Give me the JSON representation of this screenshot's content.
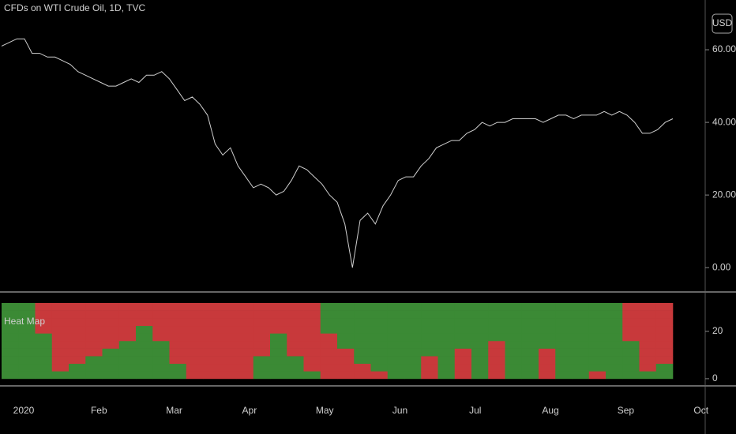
{
  "chart_data": [
    {
      "type": "line",
      "title": "CFDs on WTI Crude Oil, 1D, TVC",
      "currency": "USD",
      "color": "#cfcfcf",
      "values": [
        61,
        62,
        63,
        63,
        59,
        59,
        58,
        58,
        57,
        56,
        54,
        53,
        52,
        51,
        50,
        50,
        51,
        52,
        51,
        53,
        53,
        54,
        52,
        49,
        46,
        47,
        45,
        42,
        34,
        31,
        33,
        28,
        25,
        22,
        23,
        22,
        20,
        21,
        24,
        28,
        27,
        25,
        23,
        20,
        18,
        12,
        0,
        13,
        15,
        12,
        17,
        20,
        24,
        25,
        25,
        28,
        30,
        33,
        34,
        35,
        35,
        37,
        38,
        40,
        39,
        40,
        40,
        41,
        41,
        41,
        41,
        40,
        41,
        42,
        42,
        41,
        42,
        42,
        42,
        43,
        42,
        43,
        42,
        40,
        37,
        37,
        38,
        40,
        41
      ],
      "ylim": [
        -6.7,
        73.7
      ],
      "yticks": [
        {
          "value": 0,
          "label": "0.00"
        },
        {
          "value": 20,
          "label": "20.00"
        },
        {
          "value": 40,
          "label": "40.00"
        },
        {
          "value": 60,
          "label": "60.00"
        }
      ]
    },
    {
      "type": "heatmap",
      "title": "Heat Map",
      "colors": {
        "-1": "#c8393b",
        "1": "#3b8a35"
      },
      "ylim": [
        -2.7,
        36
      ],
      "yticks": [
        0,
        20
      ],
      "yedges": [
        0,
        3.2,
        6.4,
        9.6,
        12.8,
        16,
        19.2,
        22.4,
        25.6,
        28.8,
        32
      ],
      "xtick_labels": [
        "2020",
        "Feb",
        "Mar",
        "Apr",
        "May",
        "Jun",
        "Jul",
        "Aug",
        "Sep",
        "Oct"
      ],
      "z": [
        [
          1,
          1,
          1,
          1,
          1,
          1,
          1,
          1,
          1,
          1,
          1,
          -1,
          -1,
          -1,
          -1,
          1,
          1,
          1,
          1,
          -1,
          -1,
          -1,
          -1,
          1,
          1,
          -1,
          1,
          -1,
          1,
          -1,
          1,
          1,
          -1,
          1,
          1,
          -1,
          1,
          1,
          1,
          1
        ],
        [
          1,
          1,
          1,
          -1,
          1,
          1,
          1,
          1,
          1,
          1,
          1,
          -1,
          -1,
          -1,
          -1,
          1,
          1,
          1,
          -1,
          -1,
          -1,
          -1,
          1,
          1,
          1,
          -1,
          1,
          -1,
          1,
          -1,
          1,
          1,
          -1,
          1,
          1,
          1,
          1,
          1,
          -1,
          1
        ],
        [
          1,
          1,
          1,
          -1,
          -1,
          1,
          1,
          1,
          1,
          1,
          -1,
          -1,
          -1,
          -1,
          -1,
          1,
          1,
          1,
          -1,
          -1,
          -1,
          1,
          1,
          1,
          1,
          -1,
          1,
          -1,
          1,
          -1,
          1,
          1,
          -1,
          1,
          1,
          1,
          1,
          1,
          -1,
          -1
        ],
        [
          1,
          1,
          1,
          -1,
          -1,
          -1,
          1,
          1,
          1,
          1,
          -1,
          -1,
          -1,
          -1,
          -1,
          -1,
          1,
          -1,
          -1,
          -1,
          -1,
          1,
          1,
          1,
          1,
          1,
          1,
          -1,
          1,
          -1,
          1,
          1,
          -1,
          1,
          1,
          1,
          1,
          1,
          -1,
          -1
        ],
        [
          1,
          1,
          1,
          -1,
          -1,
          -1,
          -1,
          1,
          1,
          1,
          -1,
          -1,
          -1,
          -1,
          -1,
          -1,
          1,
          -1,
          -1,
          -1,
          1,
          1,
          1,
          1,
          1,
          1,
          1,
          1,
          1,
          -1,
          1,
          1,
          1,
          1,
          1,
          1,
          1,
          1,
          -1,
          -1
        ],
        [
          1,
          1,
          1,
          -1,
          -1,
          -1,
          -1,
          -1,
          1,
          -1,
          -1,
          -1,
          -1,
          -1,
          -1,
          -1,
          1,
          -1,
          -1,
          -1,
          1,
          1,
          1,
          1,
          1,
          1,
          1,
          1,
          1,
          1,
          1,
          1,
          1,
          1,
          1,
          1,
          1,
          -1,
          -1,
          -1
        ],
        [
          1,
          1,
          -1,
          -1,
          -1,
          -1,
          -1,
          -1,
          1,
          -1,
          -1,
          -1,
          -1,
          -1,
          -1,
          -1,
          -1,
          -1,
          -1,
          1,
          1,
          1,
          1,
          1,
          1,
          1,
          1,
          1,
          1,
          1,
          1,
          1,
          1,
          1,
          1,
          1,
          1,
          -1,
          -1,
          -1
        ],
        [
          1,
          1,
          -1,
          -1,
          -1,
          -1,
          -1,
          -1,
          -1,
          -1,
          -1,
          -1,
          -1,
          -1,
          -1,
          -1,
          -1,
          -1,
          -1,
          1,
          1,
          1,
          1,
          1,
          1,
          1,
          1,
          1,
          1,
          1,
          1,
          1,
          1,
          1,
          1,
          1,
          1,
          -1,
          -1,
          -1
        ],
        [
          1,
          1,
          -1,
          -1,
          -1,
          -1,
          -1,
          -1,
          -1,
          -1,
          -1,
          -1,
          -1,
          -1,
          -1,
          -1,
          -1,
          -1,
          -1,
          1,
          1,
          1,
          1,
          1,
          1,
          1,
          1,
          1,
          1,
          1,
          1,
          1,
          1,
          1,
          1,
          1,
          1,
          -1,
          -1,
          -1
        ],
        [
          1,
          1,
          -1,
          -1,
          -1,
          -1,
          -1,
          -1,
          -1,
          -1,
          -1,
          -1,
          -1,
          -1,
          -1,
          -1,
          -1,
          -1,
          -1,
          1,
          1,
          1,
          1,
          1,
          1,
          1,
          1,
          1,
          1,
          1,
          1,
          1,
          1,
          1,
          1,
          1,
          1,
          -1,
          -1,
          -1
        ]
      ]
    }
  ]
}
